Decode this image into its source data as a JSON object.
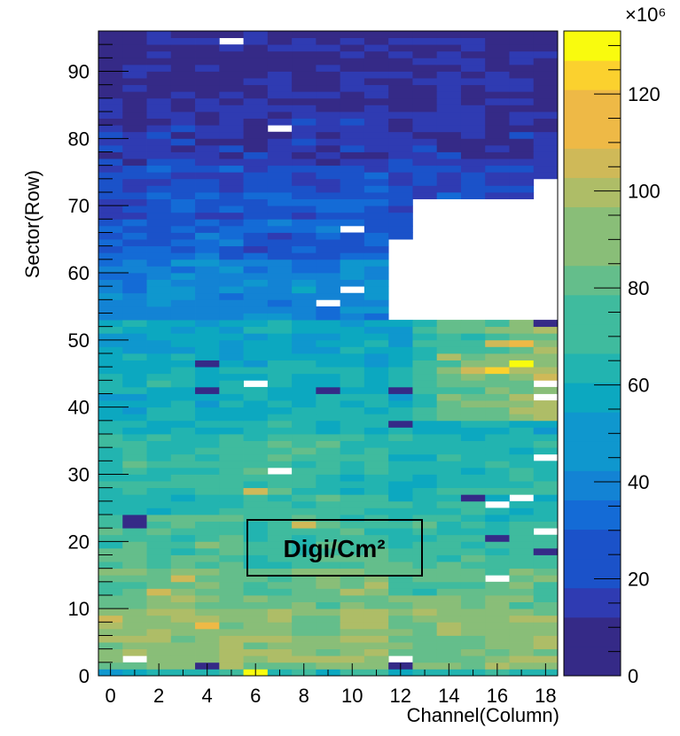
{
  "chart_data": {
    "type": "heatmap",
    "title": "",
    "xlabel": "Channel(Column)",
    "ylabel": "Sector(Row)",
    "annotation": "Digi/Cm²",
    "color_multiplier": "×10⁶",
    "xlim": [
      -0.5,
      18.5
    ],
    "ylim": [
      0,
      96
    ],
    "x_ticks": [
      "0",
      "2",
      "4",
      "6",
      "8",
      "10",
      "12",
      "14",
      "16",
      "18"
    ],
    "y_ticks": [
      "0",
      "10",
      "20",
      "30",
      "40",
      "50",
      "60",
      "70",
      "80",
      "90"
    ],
    "z_ticks": [
      "0",
      "20",
      "40",
      "60",
      "80",
      "100",
      "120"
    ],
    "zlim": [
      0,
      130
    ],
    "columns": 19,
    "rows": 96,
    "bands": [
      {
        "rows": [
          0,
          1
        ],
        "value": 60
      },
      {
        "rows": [
          1,
          2
        ],
        "value": 85
      },
      {
        "rows": [
          2,
          10
        ],
        "value": 88
      },
      {
        "rows": [
          10,
          16
        ],
        "value": 80
      },
      {
        "rows": [
          16,
          24
        ],
        "value": 72
      },
      {
        "rows": [
          24,
          36
        ],
        "value": 66
      },
      {
        "rows": [
          36,
          46
        ],
        "value": 58
      },
      {
        "rows": [
          46,
          53
        ],
        "value": 52
      },
      {
        "rows": [
          53,
          62
        ],
        "value": 38
      },
      {
        "rows": [
          62,
          68
        ],
        "value": 26
      },
      {
        "rows": [
          68,
          76
        ],
        "value": 18
      },
      {
        "rows": [
          76,
          84
        ],
        "value": 12
      },
      {
        "rows": [
          84,
          96
        ],
        "value": 6
      }
    ],
    "empty_regions": [
      {
        "cols": [
          12,
          17
        ],
        "rows": [
          53,
          65
        ]
      },
      {
        "cols": [
          13,
          17
        ],
        "rows": [
          65,
          71
        ]
      },
      {
        "cols": [
          18,
          18
        ],
        "rows": [
          53,
          74
        ]
      }
    ],
    "hot_cells": [
      {
        "col": 6,
        "row": 0,
        "value": 130
      },
      {
        "col": 15,
        "row": 45,
        "value": 105
      },
      {
        "col": 16,
        "row": 45,
        "value": 118
      },
      {
        "col": 17,
        "row": 46,
        "value": 122
      },
      {
        "col": 16,
        "row": 49,
        "value": 100
      },
      {
        "col": 17,
        "row": 49,
        "value": 108
      },
      {
        "col": 14,
        "row": 47,
        "value": 95
      },
      {
        "col": 8,
        "row": 22,
        "value": 100
      },
      {
        "col": 6,
        "row": 27,
        "value": 100
      },
      {
        "col": 4,
        "row": 7,
        "value": 110
      },
      {
        "col": 2,
        "row": 12,
        "value": 105
      },
      {
        "col": 3,
        "row": 14,
        "value": 100
      },
      {
        "col": 0,
        "row": 8,
        "value": 102
      }
    ],
    "cold_cells": [
      {
        "col": 4,
        "row": 1,
        "value": 2
      },
      {
        "col": 12,
        "row": 1,
        "value": 6
      },
      {
        "col": 1,
        "row": 22,
        "value": 3
      },
      {
        "col": 1,
        "row": 23,
        "value": 3
      },
      {
        "col": 4,
        "row": 46,
        "value": 4
      },
      {
        "col": 4,
        "row": 42,
        "value": 4
      },
      {
        "col": 9,
        "row": 42,
        "value": 4
      },
      {
        "col": 12,
        "row": 42,
        "value": 6
      },
      {
        "col": 16,
        "row": 20,
        "value": 8
      },
      {
        "col": 15,
        "row": 26,
        "value": 8
      },
      {
        "col": 18,
        "row": 52,
        "value": 4
      },
      {
        "col": 18,
        "row": 18,
        "value": 5
      },
      {
        "col": 12,
        "row": 37,
        "value": 8
      }
    ],
    "white_cells": [
      {
        "col": 5,
        "row": 94
      },
      {
        "col": 7,
        "row": 81
      },
      {
        "col": 10,
        "row": 66
      },
      {
        "col": 9,
        "row": 55
      },
      {
        "col": 10,
        "row": 57
      },
      {
        "col": 6,
        "row": 43
      },
      {
        "col": 7,
        "row": 30
      },
      {
        "col": 16,
        "row": 25
      },
      {
        "col": 17,
        "row": 26
      },
      {
        "col": 18,
        "row": 21
      },
      {
        "col": 18,
        "row": 32
      },
      {
        "col": 18,
        "row": 43
      },
      {
        "col": 18,
        "row": 41
      },
      {
        "col": 1,
        "row": 2
      },
      {
        "col": 12,
        "row": 2
      },
      {
        "col": 16,
        "row": 14
      }
    ],
    "palette": [
      "#352a87",
      "#2f3bb2",
      "#1b52c9",
      "#146bd6",
      "#1383d4",
      "#0f97ce",
      "#0ca8c0",
      "#22b4b0",
      "#3fbb9e",
      "#64be8b",
      "#89be78",
      "#aebd67",
      "#cfb958",
      "#eeb946",
      "#fbd12e",
      "#f9fb0e"
    ]
  }
}
